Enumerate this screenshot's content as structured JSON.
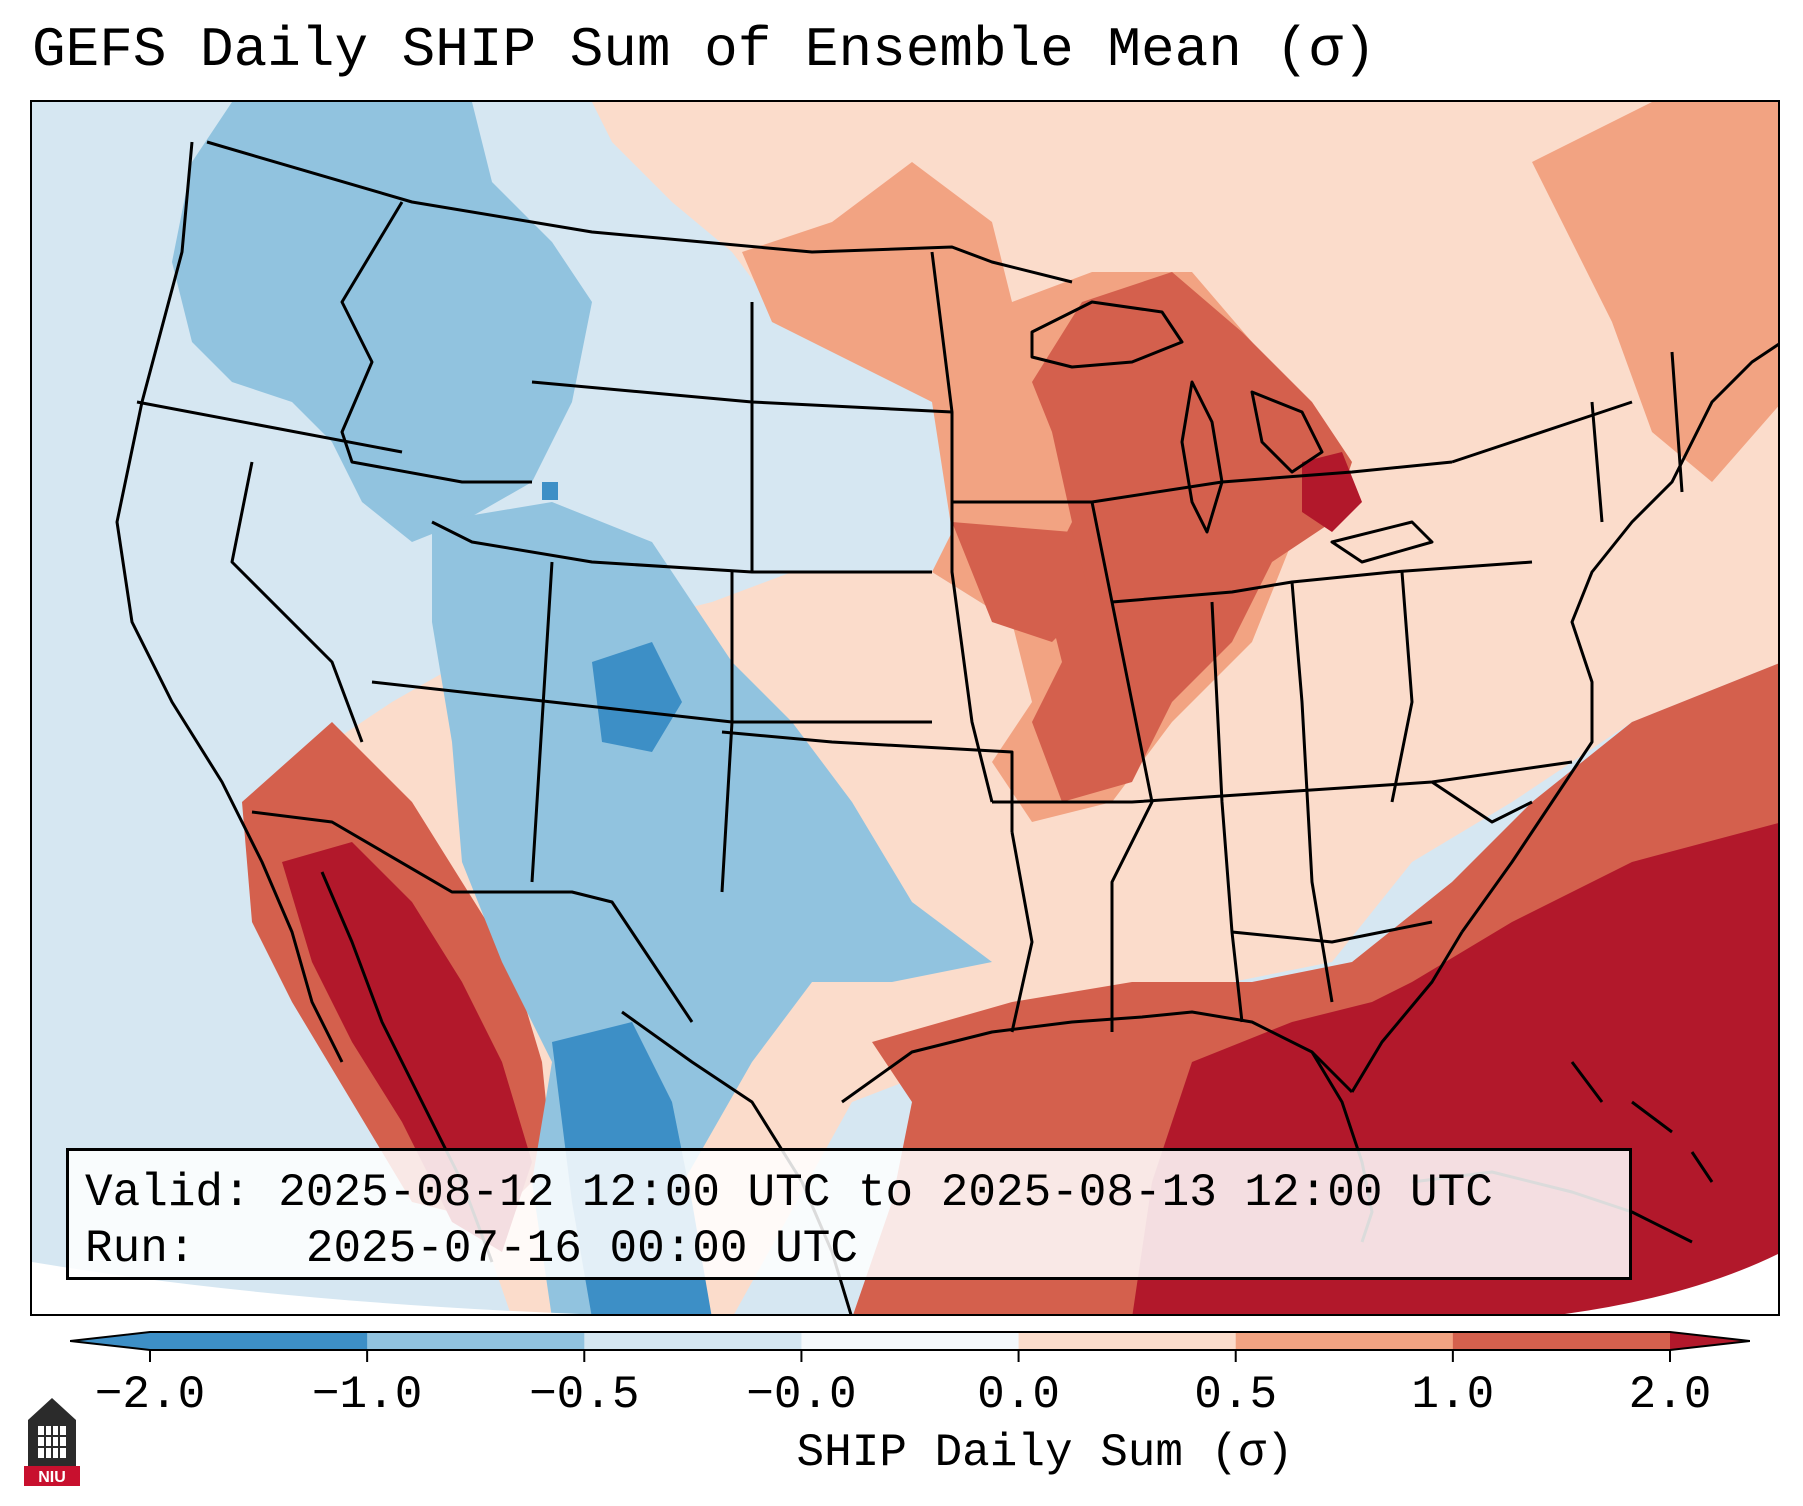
{
  "title": "GEFS Daily SHIP Sum of Ensemble Mean (σ)",
  "info": {
    "valid_label": "Valid:",
    "valid_value": "2025-08-12 12:00 UTC to 2025-08-13 12:00 UTC",
    "run_label": "Run:",
    "run_value": "2025-07-16 00:00 UTC"
  },
  "colorbar": {
    "label": "SHIP Daily Sum (σ)",
    "ticks": [
      "−2.0",
      "−1.0",
      "−0.5",
      "−0.0",
      "0.0",
      "0.5",
      "1.0",
      "2.0"
    ],
    "colors": [
      "#3d8fc6",
      "#91c3df",
      "#d4e6f1",
      "#f4f8fb",
      "#fbdccb",
      "#f2a382",
      "#d4604d",
      "#b2182b"
    ]
  },
  "logo": {
    "text": "NIU"
  }
}
